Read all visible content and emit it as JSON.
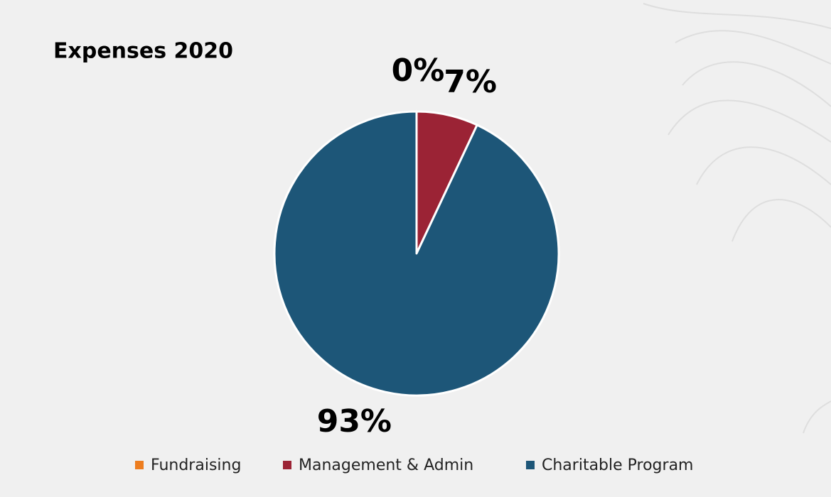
{
  "chart_data": {
    "type": "pie",
    "title": "Expenses 2020",
    "categories": [
      "Fundraising",
      "Management & Admin",
      "Charitable Program"
    ],
    "values": [
      0,
      7,
      93
    ],
    "value_labels": [
      "0%",
      "7%",
      "93%"
    ],
    "colors": [
      "#ed7d1f",
      "#9b2335",
      "#1d5678"
    ]
  }
}
